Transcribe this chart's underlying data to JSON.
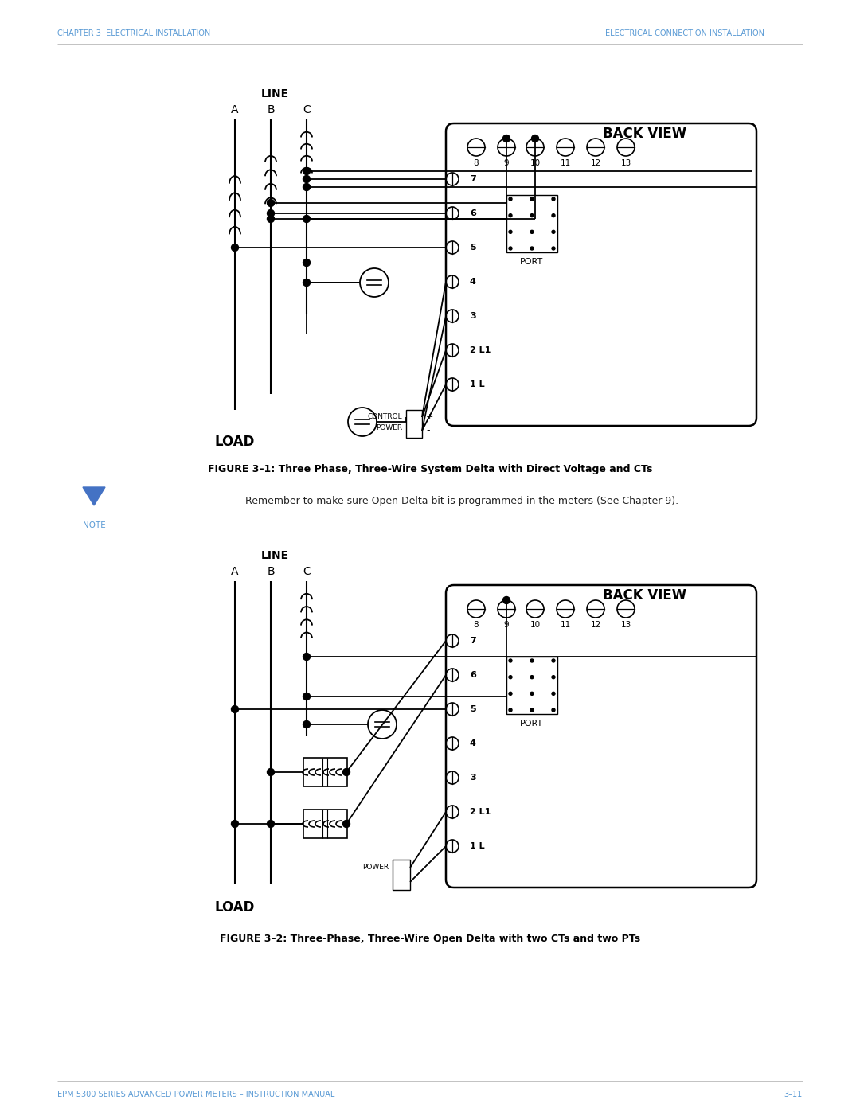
{
  "page_width": 10.8,
  "page_height": 13.97,
  "bg_color": "#ffffff",
  "header_left": "CHAPTER 3  ELECTRICAL INSTALLATION",
  "header_right": "ELECTRICAL CONNECTION INSTALLATION",
  "header_color": "#5B9BD5",
  "footer_left": "EPM 5300 SERIES ADVANCED POWER METERS – INSTRUCTION MANUAL",
  "footer_right": "3–11",
  "footer_color": "#5B9BD5",
  "fig1_caption": "FIGURE 3–1: Three Phase, Three-Wire System Delta with Direct Voltage and CTs",
  "fig2_caption": "FIGURE 3–2: Three-Phase, Three-Wire Open Delta with two CTs and two PTs",
  "note_text": "Remember to make sure Open Delta bit is programmed in the meters (See Chapter 9).",
  "note_color": "#5B9BD5",
  "line_color": "#000000",
  "text_color": "#000000"
}
